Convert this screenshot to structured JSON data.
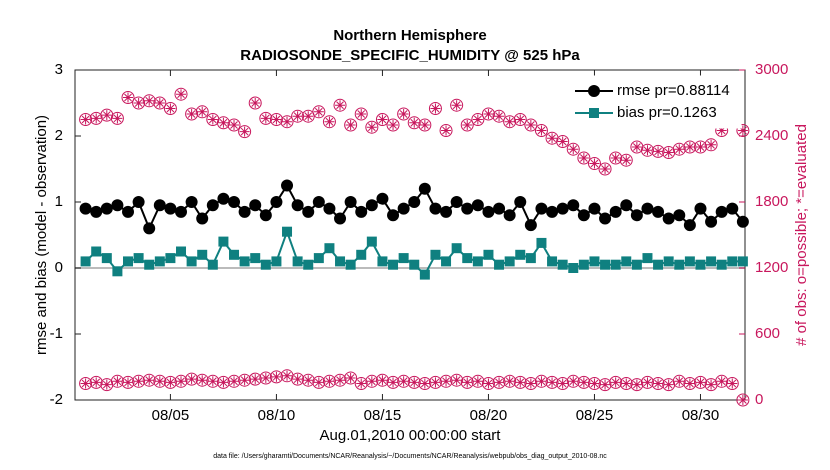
{
  "chart_data": {
    "type": "line",
    "title": "Northern Hemisphere",
    "subtitle": "RADIOSONDE_SPECIFIC_HUMIDITY @ 525 hPa",
    "x_label": "Aug.01,2010 00:00:00 start",
    "y_label": "rmse and bias (model - observation)",
    "y2_label": "# of obs: o=possible; *=evaluated",
    "footnote": "data file: /Users/gharamti/Documents/NCAR/Reanalysis/~/Documents/NCAR/Reanalysis/webpub/obs_diag_output_2010-08.nc",
    "legend": "upper right",
    "xlim": [
      0.5,
      32.1
    ],
    "xticks": [
      {
        "value": 5,
        "label": "08/05"
      },
      {
        "value": 10,
        "label": "08/10"
      },
      {
        "value": 15,
        "label": "08/15"
      },
      {
        "value": 20,
        "label": "08/20"
      },
      {
        "value": 25,
        "label": "08/25"
      },
      {
        "value": 30,
        "label": "08/30"
      }
    ],
    "ylim": [
      -2,
      3
    ],
    "yticks": [
      -2,
      -1,
      0,
      1,
      2,
      3
    ],
    "y2lim": [
      0,
      3000
    ],
    "y2ticks": [
      0,
      600,
      1200,
      1800,
      2400,
      3000
    ],
    "y2_color": "#c8175d",
    "x": [
      1,
      1.5,
      2,
      2.5,
      3,
      3.5,
      4,
      4.5,
      5,
      5.5,
      6,
      6.5,
      7,
      7.5,
      8,
      8.5,
      9,
      9.5,
      10,
      10.5,
      11,
      11.5,
      12,
      12.5,
      13,
      13.5,
      14,
      14.5,
      15,
      15.5,
      16,
      16.5,
      17,
      17.5,
      18,
      18.5,
      19,
      19.5,
      20,
      20.5,
      21,
      21.5,
      22,
      22.5,
      23,
      23.5,
      24,
      24.5,
      25,
      25.5,
      26,
      26.5,
      27,
      27.5,
      28,
      28.5,
      29,
      29.5,
      30,
      30.5,
      31,
      31.5,
      32
    ],
    "series": [
      {
        "name": "rmse pr=0.88114",
        "color": "#000000",
        "marker": "circle",
        "values": [
          0.9,
          0.85,
          0.9,
          0.95,
          0.85,
          1.0,
          0.6,
          0.95,
          0.9,
          0.85,
          1.0,
          0.75,
          0.95,
          1.05,
          1.0,
          0.85,
          0.95,
          0.8,
          1.0,
          1.25,
          0.95,
          0.85,
          1.0,
          0.9,
          0.75,
          1.0,
          0.85,
          0.95,
          1.05,
          0.8,
          0.9,
          1.0,
          1.2,
          0.9,
          0.85,
          1.0,
          0.9,
          0.95,
          0.85,
          0.9,
          0.8,
          1.0,
          0.65,
          0.9,
          0.85,
          0.9,
          0.95,
          0.8,
          0.9,
          0.75,
          0.85,
          0.95,
          0.8,
          0.9,
          0.85,
          0.75,
          0.8,
          0.65,
          0.9,
          0.7,
          0.85,
          0.9,
          0.7
        ]
      },
      {
        "name": "bias pr=0.1263",
        "color": "#0f8080",
        "marker": "square",
        "values": [
          0.1,
          0.25,
          0.15,
          -0.05,
          0.1,
          0.15,
          0.05,
          0.1,
          0.15,
          0.25,
          0.1,
          0.2,
          0.05,
          0.4,
          0.2,
          0.1,
          0.15,
          0.05,
          0.1,
          0.55,
          0.1,
          0.05,
          0.15,
          0.3,
          0.1,
          0.05,
          0.2,
          0.4,
          0.1,
          0.05,
          0.15,
          0.05,
          -0.1,
          0.2,
          0.1,
          0.3,
          0.15,
          0.1,
          0.2,
          0.05,
          0.1,
          0.2,
          0.15,
          0.38,
          0.1,
          0.05,
          0.0,
          0.05,
          0.1,
          0.05,
          0.05,
          0.1,
          0.05,
          0.15,
          0.05,
          0.1,
          0.05,
          0.1,
          0.05,
          0.1,
          0.05,
          0.1,
          0.1
        ]
      },
      {
        "color": "#c8175d",
        "marker": "circle-star",
        "axis": "y2",
        "values": [
          2550,
          2560,
          2590,
          2560,
          2750,
          2700,
          2720,
          2700,
          2650,
          2780,
          2600,
          2620,
          2550,
          2520,
          2500,
          2440,
          2700,
          2560,
          2550,
          2530,
          2580,
          2580,
          2620,
          2530,
          2680,
          2500,
          2600,
          2480,
          2550,
          2500,
          2600,
          2520,
          2500,
          2650,
          2450,
          2680,
          2500,
          2550,
          2600,
          2580,
          2530,
          2550,
          2500,
          2450,
          2380,
          2350,
          2280,
          2200,
          2150,
          2100,
          2200,
          2180,
          2300,
          2270,
          2260,
          2250,
          2280,
          2300,
          2300,
          2320,
          2450,
          2530,
          2450
        ]
      },
      {
        "color": "#c8175d",
        "marker": "circle-star",
        "axis": "y2",
        "values": [
          150,
          160,
          140,
          170,
          160,
          170,
          180,
          170,
          160,
          170,
          190,
          180,
          170,
          160,
          170,
          180,
          190,
          200,
          210,
          220,
          190,
          180,
          160,
          170,
          180,
          200,
          150,
          170,
          180,
          160,
          170,
          160,
          150,
          160,
          170,
          180,
          160,
          170,
          150,
          160,
          170,
          160,
          150,
          170,
          160,
          150,
          170,
          160,
          150,
          140,
          160,
          150,
          140,
          160,
          150,
          140,
          170,
          150,
          160,
          140,
          170,
          150,
          0
        ]
      }
    ]
  }
}
